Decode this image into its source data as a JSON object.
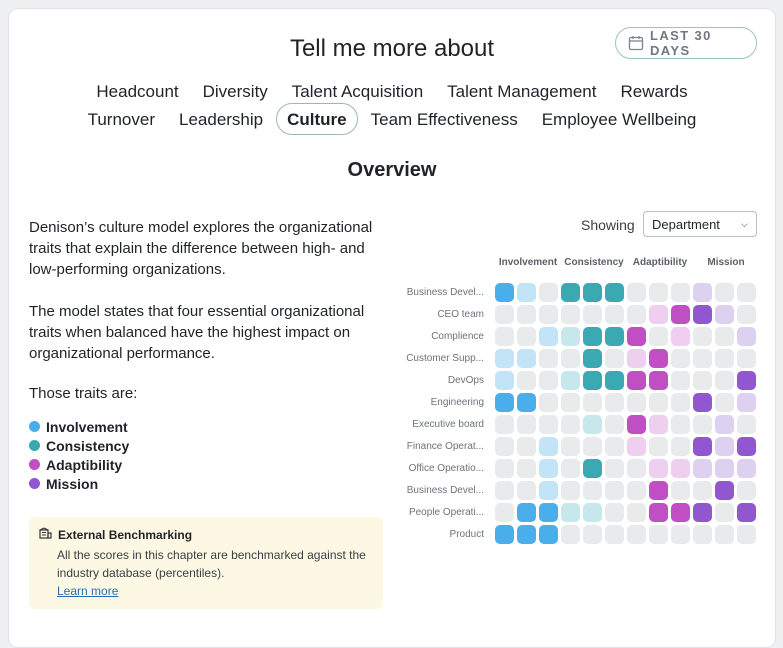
{
  "header": {
    "title": "Tell me more about",
    "date_range": "LAST 30 DAYS"
  },
  "tabs": {
    "row1": [
      "Headcount",
      "Diversity",
      "Talent Acquisition",
      "Talent Management",
      "Rewards"
    ],
    "row2": [
      "Turnover",
      "Leadership",
      "Culture",
      "Team Effectiveness",
      "Employee Wellbeing"
    ],
    "active": "Culture"
  },
  "section_title": "Overview",
  "description": {
    "p1": "Denison’s culture model explores the organizational traits that explain the difference between high- and low-performing organizations.",
    "p2": "The model states that four essential organizational traits when balanced have the highest impact on organizational performance.",
    "traits_intro": "Those traits are:"
  },
  "traits": [
    {
      "label": "Involvement",
      "color": "#49aee9"
    },
    {
      "label": "Consistency",
      "color": "#3aa9b2"
    },
    {
      "label": "Adaptibility",
      "color": "#c04fc4"
    },
    {
      "label": "Mission",
      "color": "#9157cf"
    }
  ],
  "benchmark": {
    "title": "External Benchmarking",
    "text": "All the scores in this chapter are benchmarked against the industry database (percentiles).",
    "link": "Learn more",
    "icon": "building-icon"
  },
  "filter": {
    "label": "Showing",
    "value": "Department"
  },
  "heatmap": {
    "groups": [
      "Involvement",
      "Consistency",
      "Adaptibility",
      "Mission"
    ],
    "rows": [
      {
        "label": "Business Devel...",
        "levels": [
          2,
          1,
          0,
          2,
          2,
          2,
          0,
          0,
          0,
          1,
          0,
          0
        ]
      },
      {
        "label": "CEO team",
        "levels": [
          0,
          0,
          0,
          0,
          0,
          0,
          0,
          1,
          2,
          2,
          1,
          0
        ]
      },
      {
        "label": "Complience",
        "levels": [
          0,
          0,
          1,
          1,
          2,
          2,
          2,
          0,
          1,
          0,
          0,
          1
        ]
      },
      {
        "label": "Customer Supp...",
        "levels": [
          1,
          1,
          0,
          0,
          2,
          0,
          1,
          2,
          0,
          0,
          0,
          0
        ]
      },
      {
        "label": "DevOps",
        "levels": [
          1,
          0,
          0,
          1,
          2,
          2,
          2,
          2,
          0,
          0,
          0,
          2
        ]
      },
      {
        "label": "Engineering",
        "levels": [
          2,
          2,
          0,
          0,
          0,
          0,
          0,
          0,
          0,
          2,
          0,
          1
        ]
      },
      {
        "label": "Executive board",
        "levels": [
          0,
          0,
          0,
          0,
          1,
          0,
          2,
          1,
          0,
          0,
          1,
          0
        ]
      },
      {
        "label": "Finance Operat...",
        "levels": [
          0,
          0,
          1,
          0,
          0,
          0,
          1,
          0,
          0,
          2,
          1,
          2
        ]
      },
      {
        "label": "Office Operatio...",
        "levels": [
          0,
          0,
          1,
          0,
          2,
          0,
          0,
          1,
          1,
          1,
          1,
          1
        ]
      },
      {
        "label": "Business Devel...",
        "levels": [
          0,
          0,
          1,
          0,
          0,
          0,
          0,
          2,
          0,
          0,
          2,
          0
        ]
      },
      {
        "label": "People Operati...",
        "levels": [
          0,
          2,
          2,
          1,
          1,
          0,
          0,
          2,
          2,
          2,
          0,
          2
        ]
      },
      {
        "label": "Product",
        "levels": [
          2,
          2,
          2,
          0,
          0,
          0,
          0,
          0,
          0,
          0,
          0,
          0
        ]
      }
    ],
    "palette": {
      "empty": "#e9eaec",
      "Involvement": [
        "#e9eaec",
        "#c3e3f7",
        "#49aee9"
      ],
      "Consistency": [
        "#e9eaec",
        "#c6e7eb",
        "#3aa9b2"
      ],
      "Adaptibility": [
        "#e9eaec",
        "#eecff0",
        "#c04fc4"
      ],
      "Mission": [
        "#e9eaec",
        "#ddd0f1",
        "#9157cf"
      ]
    }
  }
}
